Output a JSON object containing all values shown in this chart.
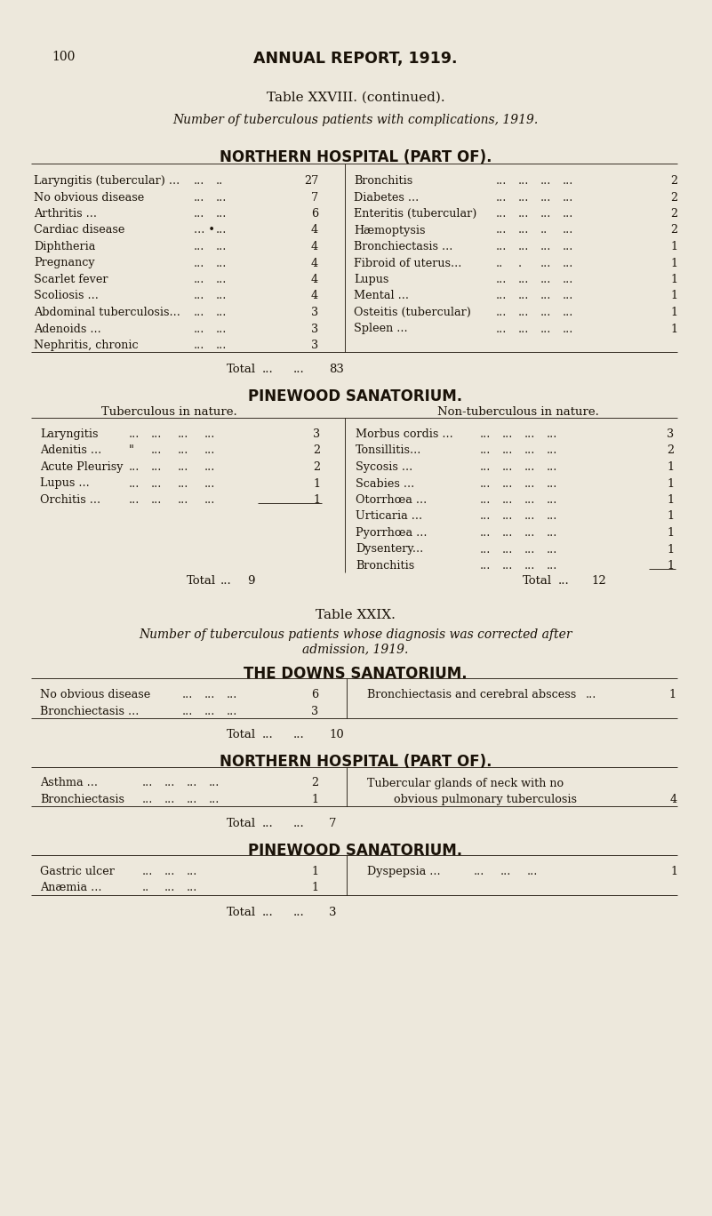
{
  "bg_color": "#ede8dc",
  "text_color": "#1a1208",
  "page_number": "100",
  "main_header": "ANNUAL REPORT, 1919.",
  "table28_title": "Table XXVIII. (continued).",
  "table28_subtitle": "Number of tuberculous patients with complications, 1919.",
  "nh_header": "NORTHERN HOSPITAL (PART OF).",
  "nh_left": [
    [
      "Laryngitis (tubercular) ...",
      "...",
      "..",
      "27"
    ],
    [
      "No obvious disease",
      "...",
      "...",
      "7"
    ],
    [
      "Arthritis ...",
      "...",
      "...",
      "6"
    ],
    [
      "Cardiac disease",
      "... •",
      "...",
      "4"
    ],
    [
      "Diphtheria",
      "...",
      "...",
      "4"
    ],
    [
      "Pregnancy",
      "...",
      "...",
      "4"
    ],
    [
      "Scarlet fever",
      "...",
      "...",
      "4"
    ],
    [
      "Scoliosis ...",
      "...",
      "...",
      "4"
    ],
    [
      "Abdominal tuberculosis...",
      "...",
      "...",
      "3"
    ],
    [
      "Adenoids ...",
      "...",
      "...",
      "3"
    ],
    [
      "Nephritis, chronic",
      "...",
      "...",
      "3"
    ]
  ],
  "nh_right": [
    [
      "Bronchitis",
      "...",
      "...",
      "...",
      "...",
      "2"
    ],
    [
      "Diabetes ...",
      "...",
      "...",
      "...",
      "...",
      "2"
    ],
    [
      "Enteritis (tubercular)",
      "...",
      "...",
      "...",
      "...",
      "2"
    ],
    [
      "Hæmoptysis",
      "...",
      "...",
      "..",
      "...",
      "2"
    ],
    [
      "Bronchiectasis ...",
      "...",
      "...",
      "...",
      "...",
      "1"
    ],
    [
      "Fibroid of uterus...",
      "..",
      ".",
      "...",
      "...",
      "1"
    ],
    [
      "Lupus",
      "...",
      "...",
      "...",
      "...",
      "1"
    ],
    [
      "Mental ...",
      "...",
      "...",
      "...",
      "...",
      "1"
    ],
    [
      "Osteitis (tubercular)",
      "...",
      "...",
      "...",
      "...",
      "1"
    ],
    [
      "Spleen ...",
      "...",
      "...",
      "...",
      "...",
      "1"
    ]
  ],
  "nh_total": "83",
  "pine_header": "PINEWOOD SANATORIUM.",
  "pine_left_subheader": "Tuberculous in nature.",
  "pine_right_subheader": "Non-tuberculous in nature.",
  "pine_left": [
    [
      "Laryngitis",
      "...",
      "...",
      "...",
      "...",
      "3"
    ],
    [
      "Adenitis ...",
      "\"",
      "...",
      "...",
      "...",
      "2"
    ],
    [
      "Acute Pleurisy",
      "...",
      "...",
      "...",
      "...",
      "2"
    ],
    [
      "Lupus ...",
      "...",
      "...",
      "...",
      "...",
      "1"
    ],
    [
      "Orchitis ...",
      "...",
      "...",
      "...",
      "...",
      "1"
    ]
  ],
  "pine_right": [
    [
      "Morbus cordis ...",
      "...",
      "...",
      "...",
      "...",
      "3"
    ],
    [
      "Tonsillitis...",
      "...",
      "...",
      "...",
      "...",
      "2"
    ],
    [
      "Sycosis ...",
      "...",
      "...",
      "...",
      "...",
      "1"
    ],
    [
      "Scabies ...",
      "...",
      "...",
      "...",
      "...",
      "1"
    ],
    [
      "Otorrhœa ...",
      "...",
      "...",
      "...",
      "...",
      "1"
    ],
    [
      "Urticaria ...",
      "...",
      "...",
      "...",
      "...",
      "1"
    ],
    [
      "Pyorrhœa ...",
      "...",
      "...",
      "...",
      "...",
      "1"
    ],
    [
      "Dysentery...",
      "...",
      "...",
      "...",
      "...",
      "1"
    ],
    [
      "Bronchitis",
      "...",
      "...",
      "...",
      "...",
      "1"
    ]
  ],
  "pine_left_total": "9",
  "pine_right_total": "12",
  "table29_title": "Table XXIX.",
  "table29_subtitle1": "Number of tuberculous patients whose diagnosis was corrected after",
  "table29_subtitle2": "admission, 1919.",
  "downs_header": "THE DOWNS SANATORIUM.",
  "downs_left": [
    [
      "No obvious disease",
      "...",
      "...",
      "...",
      "6"
    ],
    [
      "Bronchiectasis ...",
      "...",
      "...",
      "...",
      "3"
    ]
  ],
  "downs_right": [
    [
      "Bronchiectasis and cerebral abscess",
      "...",
      "1"
    ]
  ],
  "downs_total": "10",
  "nh2_header": "NORTHERN HOSPITAL (PART OF).",
  "nh2_left": [
    [
      "Asthma ...",
      "...",
      "...",
      "...",
      "...",
      "2"
    ],
    [
      "Bronchiectasis",
      "...",
      "...",
      "...",
      "...",
      "1"
    ]
  ],
  "nh2_right_line1": "Tubercular glands of neck with no",
  "nh2_right_line2": "obvious pulmonary tuberculosis",
  "nh2_right_val": "4",
  "nh2_total": "7",
  "pine2_header": "PINEWOOD SANATORIUM.",
  "pine2_left": [
    [
      "Gastric ulcer",
      "...",
      "...",
      "...",
      "1"
    ],
    [
      "Anæmia ...",
      "..",
      "...",
      "...",
      "1"
    ]
  ],
  "pine2_right": [
    [
      "Dyspepsia ...",
      "...",
      "...",
      "...",
      "1"
    ]
  ],
  "pine2_total": "3"
}
